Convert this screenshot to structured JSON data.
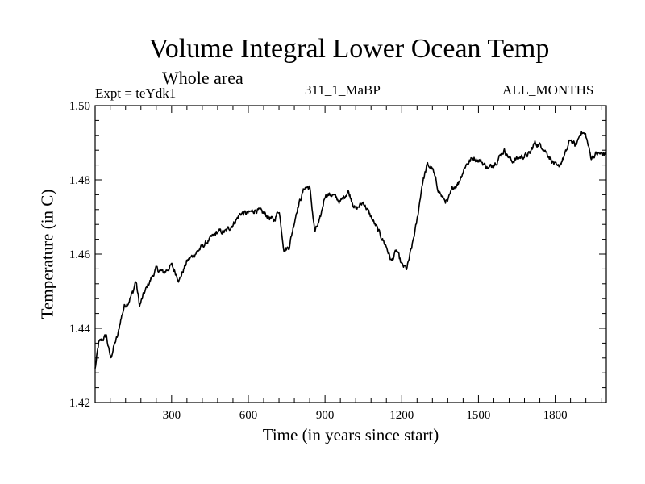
{
  "chart_data": {
    "type": "line",
    "title": "Volume Integral Lower Ocean Temp",
    "subtitle": "Whole area",
    "experiment_label": "Expt = teYdk1",
    "center_label": "311_1_MaBP",
    "right_label": "ALL_MONTHS",
    "xlabel": "Time (in years since start)",
    "ylabel": "Temperature (in C)",
    "xlim": [
      1,
      2000
    ],
    "ylim": [
      1.42,
      1.5
    ],
    "xticks": [
      300,
      600,
      900,
      1200,
      1500,
      1800
    ],
    "xtick_labels": [
      "300",
      "600",
      "900",
      "1200",
      "1500",
      "1800"
    ],
    "yticks": [
      1.42,
      1.44,
      1.46,
      1.48,
      1.5
    ],
    "ytick_labels": [
      "1.42",
      "1.44",
      "1.46",
      "1.48",
      "1.50"
    ],
    "series": [
      {
        "name": "Volume integral lower ocean temperature",
        "x": [
          1,
          15,
          30,
          45,
          55,
          62,
          70,
          78,
          90,
          100,
          115,
          130,
          150,
          160,
          175,
          190,
          210,
          240,
          270,
          300,
          330,
          360,
          390,
          420,
          450,
          480,
          510,
          540,
          570,
          600,
          630,
          660,
          700,
          720,
          740,
          760,
          790,
          820,
          840,
          860,
          880,
          900,
          930,
          960,
          990,
          1020,
          1050,
          1080,
          1110,
          1140,
          1160,
          1180,
          1200,
          1220,
          1240,
          1260,
          1280,
          1300,
          1320,
          1340,
          1360,
          1380,
          1400,
          1420,
          1450,
          1480,
          1510,
          1540,
          1570,
          1600,
          1630,
          1660,
          1700,
          1720,
          1750,
          1780,
          1810,
          1840,
          1860,
          1880,
          1900,
          1920,
          1940,
          1960,
          1980,
          2000
        ],
        "y": [
          1.429,
          1.436,
          1.437,
          1.438,
          1.434,
          1.432,
          1.434,
          1.436,
          1.438,
          1.442,
          1.446,
          1.447,
          1.45,
          1.453,
          1.446,
          1.449,
          1.452,
          1.456,
          1.455,
          1.457,
          1.453,
          1.458,
          1.46,
          1.462,
          1.464,
          1.466,
          1.466,
          1.468,
          1.471,
          1.471,
          1.472,
          1.471,
          1.469,
          1.472,
          1.461,
          1.462,
          1.472,
          1.478,
          1.478,
          1.466,
          1.469,
          1.476,
          1.476,
          1.474,
          1.477,
          1.472,
          1.474,
          1.47,
          1.466,
          1.462,
          1.458,
          1.461,
          1.457,
          1.456,
          1.462,
          1.469,
          1.479,
          1.484,
          1.483,
          1.478,
          1.475,
          1.474,
          1.478,
          1.479,
          1.484,
          1.486,
          1.485,
          1.483,
          1.485,
          1.488,
          1.485,
          1.486,
          1.487,
          1.49,
          1.489,
          1.486,
          1.483,
          1.487,
          1.491,
          1.489,
          1.493,
          1.492,
          1.486,
          1.487,
          1.487,
          1.487
        ]
      }
    ]
  }
}
